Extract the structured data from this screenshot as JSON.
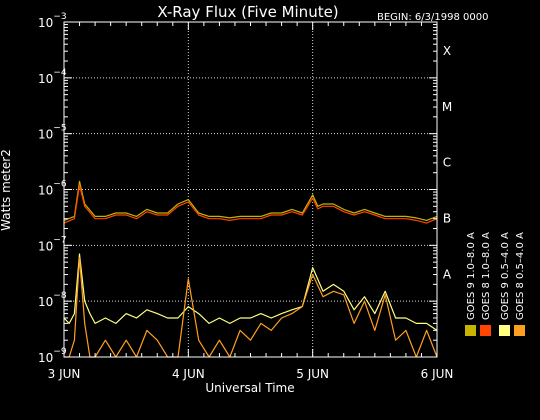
{
  "chart_data": {
    "type": "line",
    "title": "X-Ray Flux (Five Minute)",
    "begin_label": "BEGIN: 6/3/1998 0000",
    "ylabel": "Watts meter2",
    "xlabel": "Universal Time",
    "yscale": "log",
    "ylim": [
      1e-09,
      0.001
    ],
    "xlim": [
      0,
      72
    ],
    "y_ticks": [
      {
        "base": "10",
        "exp": "−9"
      },
      {
        "base": "10",
        "exp": "−8"
      },
      {
        "base": "10",
        "exp": "−7"
      },
      {
        "base": "10",
        "exp": "−6"
      },
      {
        "base": "10",
        "exp": "−5"
      },
      {
        "base": "10",
        "exp": "−4"
      },
      {
        "base": "10",
        "exp": "−3"
      }
    ],
    "x_ticks": [
      {
        "hours": 0,
        "label": "3 JUN"
      },
      {
        "hours": 24,
        "label": "4 JUN"
      },
      {
        "hours": 48,
        "label": "5 JUN"
      },
      {
        "hours": 72,
        "label": "6 JUN"
      }
    ],
    "flare_classes": [
      {
        "label": "A",
        "value": 1e-08
      },
      {
        "label": "B",
        "value": 1e-07
      },
      {
        "label": "C",
        "value": 1e-06
      },
      {
        "label": "M",
        "value": 1e-05
      },
      {
        "label": "X",
        "value": 0.0001
      }
    ],
    "grid": "dotted",
    "legend_position": "right",
    "series": [
      {
        "name": "GOES 8  1.0–8.0 A",
        "color": "#ff4500",
        "x": [
          0,
          2,
          3,
          4,
          6,
          8,
          10,
          12,
          14,
          16,
          18,
          20,
          22,
          24,
          26,
          28,
          30,
          32,
          34,
          36,
          38,
          40,
          42,
          44,
          46,
          48,
          49,
          50,
          52,
          54,
          56,
          58,
          60,
          62,
          64,
          66,
          68,
          70,
          72
        ],
        "y": [
          2.5e-07,
          3e-07,
          1.2e-06,
          5e-07,
          3e-07,
          3e-07,
          3.5e-07,
          3.5e-07,
          3e-07,
          4e-07,
          3.5e-07,
          3.5e-07,
          5e-07,
          6e-07,
          3.5e-07,
          3e-07,
          3e-07,
          2.8e-07,
          3e-07,
          3e-07,
          3e-07,
          3.5e-07,
          3.5e-07,
          4e-07,
          3.5e-07,
          7e-07,
          4.5e-07,
          5e-07,
          5e-07,
          4e-07,
          3.5e-07,
          4e-07,
          3.5e-07,
          3e-07,
          3e-07,
          3e-07,
          2.8e-07,
          2.5e-07,
          3e-07
        ]
      },
      {
        "name": "GOES 8  0.5–4.0 A",
        "color": "#ff9f20",
        "x": [
          0,
          1,
          2,
          3,
          4,
          5,
          6,
          8,
          10,
          12,
          14,
          16,
          18,
          20,
          22,
          24,
          26,
          28,
          30,
          32,
          34,
          36,
          38,
          40,
          42,
          44,
          46,
          48,
          50,
          52,
          54,
          56,
          58,
          60,
          62,
          64,
          66,
          68,
          70,
          72
        ],
        "y": [
          1e-09,
          1e-09,
          2e-09,
          6e-08,
          4e-09,
          1e-09,
          1e-09,
          2e-09,
          1e-09,
          2e-09,
          1e-09,
          3e-09,
          2e-09,
          1e-09,
          1e-09,
          2.5e-08,
          2e-09,
          1e-09,
          2e-09,
          1e-09,
          3e-09,
          2e-09,
          4e-09,
          3e-09,
          5e-09,
          6e-09,
          8e-09,
          3e-08,
          1.2e-08,
          1.5e-08,
          1.3e-08,
          4e-09,
          1e-08,
          3e-09,
          1.3e-08,
          2e-09,
          3e-09,
          1e-09,
          3e-09,
          1e-09
        ]
      },
      {
        "name": "GOES 9  1.0–8.0 A",
        "color": "#c8b400",
        "x": [
          0,
          2,
          3,
          4,
          6,
          8,
          10,
          12,
          14,
          16,
          18,
          20,
          22,
          24,
          26,
          28,
          30,
          32,
          34,
          36,
          38,
          40,
          42,
          44,
          46,
          48,
          49,
          50,
          52,
          54,
          56,
          58,
          60,
          62,
          64,
          66,
          68,
          70,
          72
        ],
        "y": [
          2.8e-07,
          3.3e-07,
          1.4e-06,
          5.5e-07,
          3.3e-07,
          3.3e-07,
          3.8e-07,
          3.8e-07,
          3.3e-07,
          4.4e-07,
          3.8e-07,
          3.8e-07,
          5.5e-07,
          6.6e-07,
          3.8e-07,
          3.3e-07,
          3.3e-07,
          3.1e-07,
          3.3e-07,
          3.3e-07,
          3.3e-07,
          3.8e-07,
          3.8e-07,
          4.4e-07,
          3.8e-07,
          8e-07,
          5e-07,
          5.5e-07,
          5.5e-07,
          4.4e-07,
          3.8e-07,
          4.4e-07,
          3.8e-07,
          3.3e-07,
          3.3e-07,
          3.3e-07,
          3.1e-07,
          2.8e-07,
          3.3e-07
        ]
      },
      {
        "name": "GOES 9  0.5–4.0 A",
        "color": "#ffff80",
        "x": [
          0,
          1,
          2,
          3,
          4,
          5,
          6,
          8,
          10,
          12,
          14,
          16,
          18,
          20,
          22,
          24,
          26,
          28,
          30,
          32,
          34,
          36,
          38,
          40,
          42,
          44,
          46,
          48,
          50,
          52,
          54,
          56,
          58,
          60,
          62,
          64,
          66,
          68,
          70,
          72
        ],
        "y": [
          5e-09,
          4e-09,
          6e-09,
          7e-08,
          1e-08,
          6e-09,
          4e-09,
          5e-09,
          4e-09,
          6e-09,
          5e-09,
          7e-09,
          6e-09,
          5e-09,
          5e-09,
          8e-09,
          6e-09,
          4e-09,
          5e-09,
          4e-09,
          5e-09,
          5e-09,
          6e-09,
          5e-09,
          6e-09,
          7e-09,
          8e-09,
          4e-08,
          1.5e-08,
          2e-08,
          1.5e-08,
          7e-09,
          1.2e-08,
          6e-09,
          1.5e-08,
          5e-09,
          5e-09,
          4e-09,
          4e-09,
          3e-09
        ]
      }
    ]
  }
}
